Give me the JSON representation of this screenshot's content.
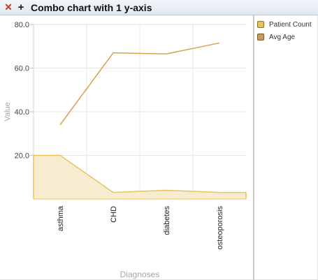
{
  "window": {
    "close_glyph": "✕",
    "add_glyph": "+",
    "title": "Combo chart with 1 y-axis"
  },
  "chart_data": {
    "type": "combo",
    "title": "",
    "xlabel": "Diagnoses",
    "ylabel": "Value",
    "ylim": [
      0,
      80
    ],
    "yticks": [
      "80.0",
      "60.0",
      "40.0",
      "20.0"
    ],
    "categories": [
      "asthma",
      "CHD",
      "diabetes",
      "osteoporosis"
    ],
    "series": [
      {
        "name": "Patient Count",
        "type": "area",
        "color": "#e7c45a",
        "fill": "#f8ecd0",
        "values": [
          20,
          3,
          4,
          3
        ]
      },
      {
        "name": "Avg Age",
        "type": "line",
        "color": "#d7a24e",
        "values": [
          34,
          67,
          66.5,
          71.5
        ]
      }
    ],
    "grid": true,
    "legend_position": "right"
  }
}
